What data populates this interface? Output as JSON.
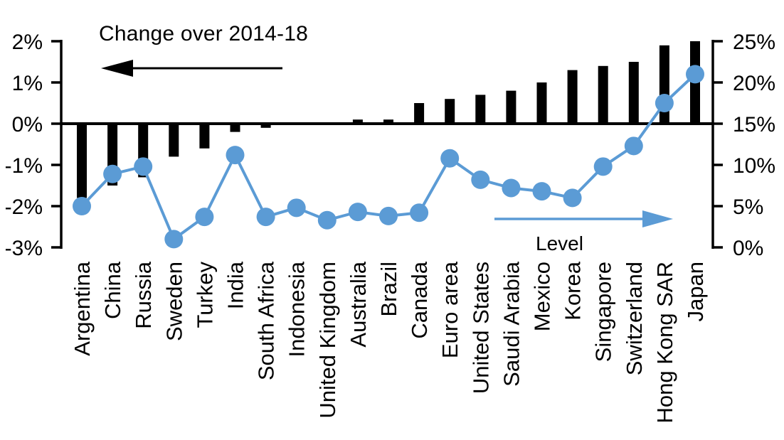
{
  "chart_data": {
    "type": "combo-bar-line",
    "categories": [
      "Argentina",
      "China",
      "Russia",
      "Sweden",
      "Turkey",
      "India",
      "South Africa",
      "Indonesia",
      "United Kingdom",
      "Australia",
      "Brazil",
      "Canada",
      "Euro area",
      "United States",
      "Saudi Arabia",
      "Mexico",
      "Korea",
      "Singapore",
      "Switzerland",
      "Hong Kong SAR",
      "Japan"
    ],
    "series": [
      {
        "name": "Change over 2014-18",
        "type": "bar",
        "axis": "left",
        "values": [
          -1.8,
          -1.5,
          -1.3,
          -0.8,
          -0.6,
          -0.2,
          -0.1,
          0.0,
          0.0,
          0.1,
          0.1,
          0.5,
          0.6,
          0.7,
          0.8,
          1.0,
          1.3,
          1.4,
          1.5,
          1.9,
          2.0
        ]
      },
      {
        "name": "Level",
        "type": "line",
        "axis": "right",
        "values": [
          5.0,
          8.9,
          9.8,
          1.0,
          3.7,
          11.2,
          3.7,
          4.8,
          3.3,
          4.3,
          3.8,
          4.2,
          10.8,
          8.2,
          7.2,
          6.8,
          6.0,
          9.8,
          12.3,
          17.5,
          21.0
        ]
      }
    ],
    "left_axis": {
      "tick_labels": [
        "2%",
        "1%",
        "0%",
        "-1%",
        "-2%",
        "-3%"
      ],
      "tick_values": [
        2,
        1,
        0,
        -1,
        -2,
        -3
      ],
      "min": -3,
      "max": 2
    },
    "right_axis": {
      "tick_labels": [
        "25%",
        "20%",
        "15%",
        "10%",
        "5%",
        "0%"
      ],
      "tick_values": [
        25,
        20,
        15,
        10,
        5,
        0
      ],
      "min": 0,
      "max": 25
    },
    "annotations": {
      "change_label": "Change over 2014-18",
      "change_arrow_direction": "left",
      "level_label": "Level",
      "level_arrow_direction": "right"
    },
    "colors": {
      "bar": "#000000",
      "line": "#5b9bd5",
      "axis": "#000000",
      "background": "#ffffff"
    },
    "grid": "off",
    "legend": "none"
  }
}
